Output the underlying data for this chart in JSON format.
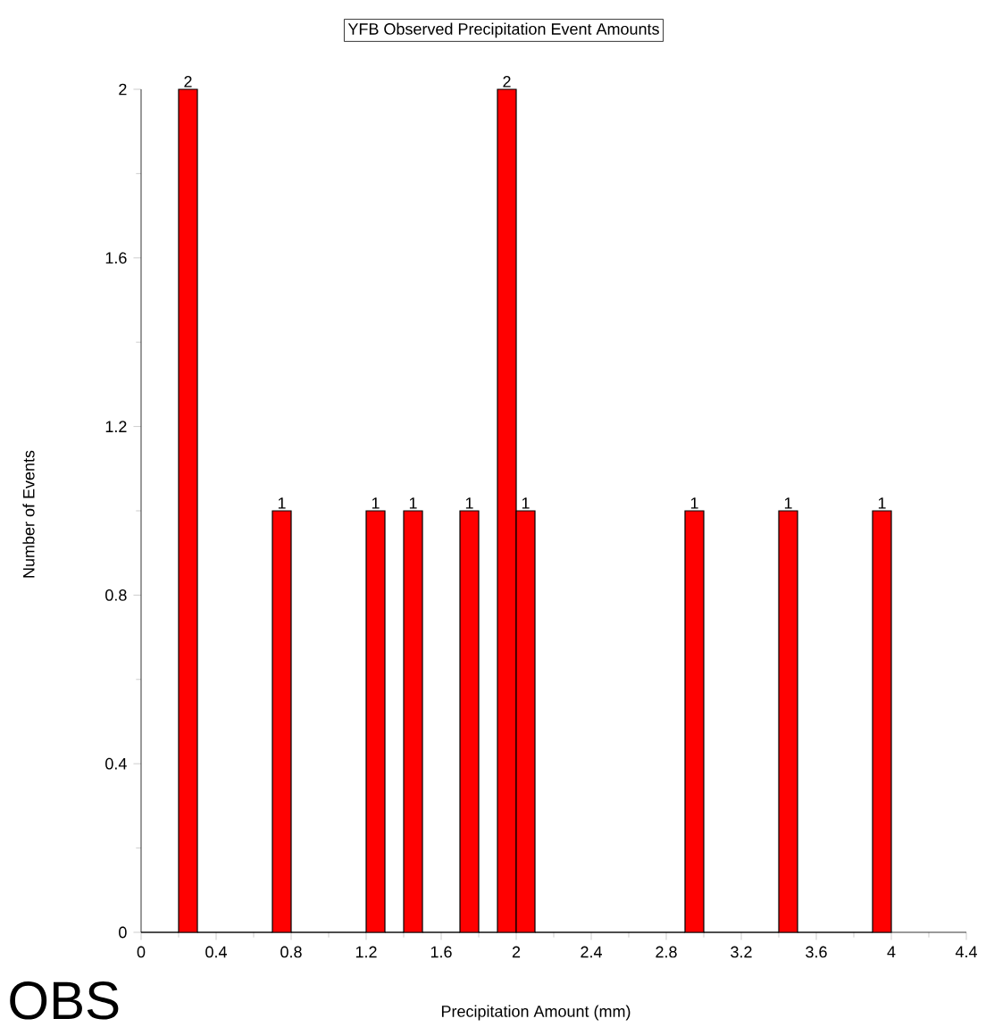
{
  "chart_data": {
    "type": "histogram",
    "title": "YFB Observed Precipitation Event Amounts",
    "xlabel": "Precipitation Amount (mm)",
    "ylabel": "Number of Events",
    "bins": [
      0,
      0.1,
      0.2,
      0.3,
      0.4,
      0.5,
      0.6,
      0.7,
      0.8,
      0.9,
      1.0,
      1.1,
      1.2,
      1.3,
      1.4,
      1.5,
      1.6,
      1.7,
      1.8,
      1.9,
      2.0,
      2.1,
      2.2,
      2.3,
      2.4,
      2.5,
      2.6,
      2.7,
      2.8,
      2.9,
      3.0,
      3.1,
      3.2,
      3.3,
      3.4,
      3.5,
      3.6,
      3.7,
      3.8,
      3.9,
      4.0
    ],
    "values": [
      0,
      0,
      2,
      0,
      0,
      0,
      0,
      1,
      0,
      0,
      0,
      0,
      1,
      0,
      1,
      0,
      0,
      1,
      0,
      2,
      1,
      0,
      0,
      0,
      0,
      0,
      0,
      0,
      0,
      1,
      0,
      0,
      0,
      0,
      1,
      0,
      0,
      0,
      0,
      1
    ],
    "value_labels": [
      null,
      null,
      "2",
      null,
      null,
      null,
      null,
      "1",
      null,
      null,
      null,
      null,
      "1",
      null,
      "1",
      null,
      null,
      "1",
      null,
      "2",
      "1",
      null,
      null,
      null,
      null,
      null,
      null,
      null,
      null,
      "1",
      null,
      null,
      null,
      null,
      "1",
      null,
      null,
      null,
      null,
      "1"
    ],
    "color": "#ff0000",
    "xlim": [
      0,
      4.4
    ],
    "xticks": [
      0,
      0.4,
      0.8,
      1.2,
      1.6,
      2,
      2.4,
      2.8,
      3.2,
      3.6,
      4,
      4.4
    ],
    "ylim": [
      0,
      2
    ],
    "yticks": [
      0,
      0.4,
      0.8,
      1.2,
      1.6,
      2
    ],
    "annotations": [
      "OBS"
    ]
  }
}
